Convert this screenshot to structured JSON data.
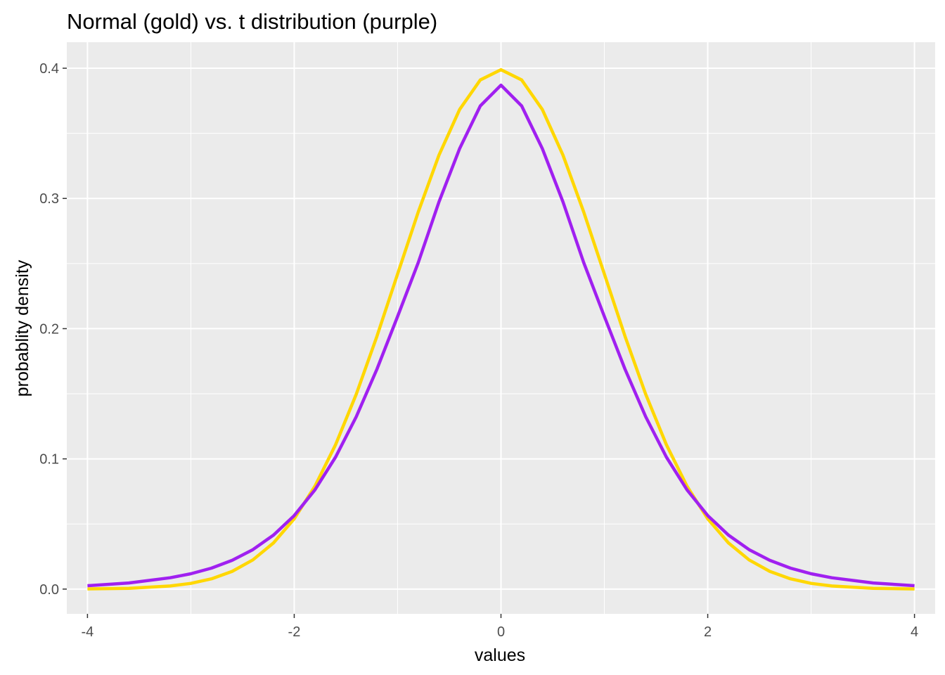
{
  "chart_data": {
    "type": "line",
    "title": "Normal (gold) vs. t distribution (purple)",
    "xlabel": "values",
    "ylabel": "probablity density",
    "xlim": [
      -4.2,
      4.2
    ],
    "ylim": [
      -0.019,
      0.42
    ],
    "x_ticks": [
      -4,
      -2,
      0,
      2,
      4
    ],
    "x_tick_labels": [
      "-4",
      "-2",
      "0",
      "2",
      "4"
    ],
    "y_ticks": [
      0.0,
      0.1,
      0.2,
      0.3,
      0.4
    ],
    "y_tick_labels": [
      "0.0",
      "0.1",
      "0.2",
      "0.3",
      "0.4"
    ],
    "grid": true,
    "background": "#ebebeb",
    "series": [
      {
        "color": "#FFD700",
        "x": [
          -4,
          -3.6,
          -3.2,
          -3.0,
          -2.8,
          -2.6,
          -2.4,
          -2.2,
          -2.0,
          -1.8,
          -1.6,
          -1.4,
          -1.2,
          -1.0,
          -0.8,
          -0.6,
          -0.4,
          -0.2,
          0,
          0.2,
          0.4,
          0.6,
          0.8,
          1.0,
          1.2,
          1.4,
          1.6,
          1.8,
          2.0,
          2.2,
          2.4,
          2.6,
          2.8,
          3.0,
          3.2,
          3.6,
          4
        ],
        "values": [
          0.0001,
          0.0006,
          0.0024,
          0.0044,
          0.0079,
          0.0136,
          0.0224,
          0.0355,
          0.054,
          0.079,
          0.1109,
          0.1497,
          0.1942,
          0.242,
          0.2897,
          0.3332,
          0.3683,
          0.391,
          0.3989,
          0.391,
          0.3683,
          0.3332,
          0.2897,
          0.242,
          0.1942,
          0.1497,
          0.1109,
          0.079,
          0.054,
          0.0355,
          0.0224,
          0.0136,
          0.0079,
          0.0044,
          0.0024,
          0.0006,
          0.0001
        ]
      },
      {
        "color": "#A020F0",
        "x": [
          -4,
          -3.6,
          -3.2,
          -3.0,
          -2.8,
          -2.6,
          -2.4,
          -2.2,
          -2.0,
          -1.8,
          -1.6,
          -1.4,
          -1.2,
          -1.0,
          -0.8,
          -0.6,
          -0.4,
          -0.2,
          0,
          0.2,
          0.4,
          0.6,
          0.8,
          1.0,
          1.2,
          1.4,
          1.6,
          1.8,
          2.0,
          2.2,
          2.4,
          2.6,
          2.8,
          3.0,
          3.2,
          3.6,
          4
        ],
        "values": [
          0.0026,
          0.0047,
          0.0087,
          0.0118,
          0.0161,
          0.0221,
          0.0303,
          0.0415,
          0.0565,
          0.0762,
          0.1014,
          0.1324,
          0.1689,
          0.2094,
          0.2508,
          0.2973,
          0.3383,
          0.3711,
          0.387,
          0.3711,
          0.3383,
          0.2973,
          0.2508,
          0.2094,
          0.1689,
          0.1324,
          0.1014,
          0.0762,
          0.0565,
          0.0415,
          0.0303,
          0.0221,
          0.0161,
          0.0118,
          0.0087,
          0.0047,
          0.0026
        ]
      }
    ]
  }
}
